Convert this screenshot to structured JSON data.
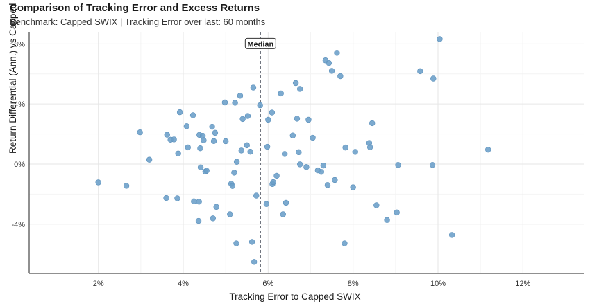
{
  "header": {
    "title": "Comparison of Tracking Error and Excess Returns",
    "subtitle": "Benchmark: Capped SWIX | Tracking Error over last: 60 months"
  },
  "chart_data": {
    "type": "scatter",
    "title": "Comparison of Tracking Error and Excess Returns",
    "subtitle": "Benchmark: Capped SWIX | Tracking Error over last: 60 months",
    "xlabel": "Tracking Error to Capped SWIX",
    "ylabel": "Return Differential (Ann.) vs Capped SWIX",
    "xlim": [
      0.0037,
      0.1345
    ],
    "ylim": [
      -0.0728,
      0.088
    ],
    "x_ticks": [
      0.02,
      0.04,
      0.06,
      0.08,
      0.1,
      0.12
    ],
    "x_tick_labels": [
      "2%",
      "4%",
      "6%",
      "8%",
      "10%",
      "12%"
    ],
    "y_ticks": [
      -0.04,
      0.0,
      0.04,
      0.08
    ],
    "y_tick_labels": [
      "-4%",
      "0%",
      "4%",
      "8%"
    ],
    "grid": true,
    "point_color": "#6a9ec8",
    "median": {
      "label": "Median",
      "x": 0.0582
    },
    "points": [
      {
        "x": 0.02,
        "y": -0.0122
      },
      {
        "x": 0.0266,
        "y": -0.0145
      },
      {
        "x": 0.0298,
        "y": 0.0211
      },
      {
        "x": 0.032,
        "y": 0.0029
      },
      {
        "x": 0.036,
        "y": -0.0226
      },
      {
        "x": 0.0362,
        "y": 0.0195
      },
      {
        "x": 0.037,
        "y": 0.0162
      },
      {
        "x": 0.0378,
        "y": 0.0164
      },
      {
        "x": 0.0386,
        "y": -0.0228
      },
      {
        "x": 0.0388,
        "y": 0.007
      },
      {
        "x": 0.0392,
        "y": 0.0345
      },
      {
        "x": 0.0408,
        "y": 0.0252
      },
      {
        "x": 0.0411,
        "y": 0.0111
      },
      {
        "x": 0.0423,
        "y": 0.0325
      },
      {
        "x": 0.0425,
        "y": -0.0248
      },
      {
        "x": 0.0436,
        "y": -0.0378
      },
      {
        "x": 0.0437,
        "y": -0.025
      },
      {
        "x": 0.0438,
        "y": 0.0194
      },
      {
        "x": 0.044,
        "y": 0.0105
      },
      {
        "x": 0.0441,
        "y": -0.0022
      },
      {
        "x": 0.0446,
        "y": 0.0188
      },
      {
        "x": 0.0448,
        "y": 0.0158
      },
      {
        "x": 0.0452,
        "y": -0.005
      },
      {
        "x": 0.0455,
        "y": -0.0044
      },
      {
        "x": 0.0468,
        "y": 0.0248
      },
      {
        "x": 0.047,
        "y": -0.0361
      },
      {
        "x": 0.0472,
        "y": 0.0153
      },
      {
        "x": 0.0475,
        "y": 0.0208
      },
      {
        "x": 0.0478,
        "y": -0.0285
      },
      {
        "x": 0.0498,
        "y": 0.041
      },
      {
        "x": 0.05,
        "y": 0.0152
      },
      {
        "x": 0.051,
        "y": -0.0334
      },
      {
        "x": 0.0513,
        "y": -0.0131
      },
      {
        "x": 0.0516,
        "y": -0.0146
      },
      {
        "x": 0.052,
        "y": -0.0057
      },
      {
        "x": 0.0522,
        "y": 0.0408
      },
      {
        "x": 0.0525,
        "y": -0.0528
      },
      {
        "x": 0.0526,
        "y": 0.0015
      },
      {
        "x": 0.0534,
        "y": 0.0455
      },
      {
        "x": 0.0537,
        "y": 0.009
      },
      {
        "x": 0.054,
        "y": 0.03
      },
      {
        "x": 0.055,
        "y": 0.0125
      },
      {
        "x": 0.0552,
        "y": 0.032
      },
      {
        "x": 0.0558,
        "y": 0.0082
      },
      {
        "x": 0.0562,
        "y": -0.0518
      },
      {
        "x": 0.0565,
        "y": 0.0509
      },
      {
        "x": 0.0567,
        "y": -0.0651
      },
      {
        "x": 0.0572,
        "y": -0.021
      },
      {
        "x": 0.0581,
        "y": 0.0391
      },
      {
        "x": 0.0596,
        "y": -0.0266
      },
      {
        "x": 0.0598,
        "y": 0.0115
      },
      {
        "x": 0.06,
        "y": 0.0295
      },
      {
        "x": 0.0609,
        "y": 0.0343
      },
      {
        "x": 0.061,
        "y": -0.0133
      },
      {
        "x": 0.0612,
        "y": -0.012
      },
      {
        "x": 0.062,
        "y": -0.0078
      },
      {
        "x": 0.063,
        "y": 0.047
      },
      {
        "x": 0.0635,
        "y": -0.0334
      },
      {
        "x": 0.0639,
        "y": 0.0067
      },
      {
        "x": 0.0642,
        "y": -0.0258
      },
      {
        "x": 0.0658,
        "y": 0.019
      },
      {
        "x": 0.0665,
        "y": 0.0539
      },
      {
        "x": 0.0668,
        "y": 0.0302
      },
      {
        "x": 0.0672,
        "y": 0.0079
      },
      {
        "x": 0.0675,
        "y": 0.05
      },
      {
        "x": 0.0675,
        "y": -0.0002
      },
      {
        "x": 0.069,
        "y": -0.002
      },
      {
        "x": 0.0695,
        "y": 0.0295
      },
      {
        "x": 0.0705,
        "y": 0.0175
      },
      {
        "x": 0.0717,
        "y": -0.0042
      },
      {
        "x": 0.0725,
        "y": -0.0052
      },
      {
        "x": 0.073,
        "y": -0.001
      },
      {
        "x": 0.0735,
        "y": 0.069
      },
      {
        "x": 0.074,
        "y": -0.014
      },
      {
        "x": 0.0743,
        "y": 0.0672
      },
      {
        "x": 0.075,
        "y": 0.062
      },
      {
        "x": 0.0757,
        "y": -0.0106
      },
      {
        "x": 0.0762,
        "y": 0.074
      },
      {
        "x": 0.077,
        "y": 0.0585
      },
      {
        "x": 0.078,
        "y": -0.0528
      },
      {
        "x": 0.0782,
        "y": 0.011
      },
      {
        "x": 0.08,
        "y": -0.0155
      },
      {
        "x": 0.0805,
        "y": 0.0081
      },
      {
        "x": 0.0838,
        "y": 0.014
      },
      {
        "x": 0.084,
        "y": 0.0112
      },
      {
        "x": 0.0845,
        "y": 0.0272
      },
      {
        "x": 0.0855,
        "y": -0.0274
      },
      {
        "x": 0.088,
        "y": -0.0372
      },
      {
        "x": 0.0903,
        "y": -0.0322
      },
      {
        "x": 0.0906,
        "y": -0.0006
      },
      {
        "x": 0.0958,
        "y": 0.0618
      },
      {
        "x": 0.0987,
        "y": -0.0006
      },
      {
        "x": 0.0989,
        "y": 0.0569
      },
      {
        "x": 0.1004,
        "y": 0.0832
      },
      {
        "x": 0.1033,
        "y": -0.0472
      },
      {
        "x": 0.1118,
        "y": 0.0096
      }
    ]
  }
}
